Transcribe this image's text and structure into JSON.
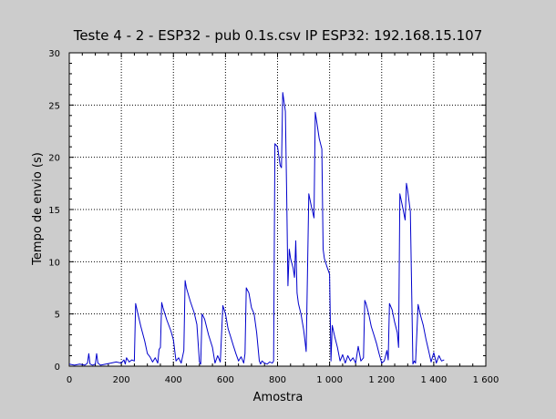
{
  "chart_data": {
    "type": "line",
    "title": "Teste 4 - 2 - ESP32 - pub 0.1s.csv IP ESP32: 192.168.15.107",
    "xlabel": "Amostra",
    "ylabel": "Tempo de envio (s)",
    "xlim": [
      0,
      1600
    ],
    "ylim": [
      0,
      30
    ],
    "x_ticks": [
      0,
      200,
      400,
      600,
      800,
      1000,
      1200,
      1400,
      1600
    ],
    "x_tick_labels": [
      "0",
      "200",
      "400",
      "600",
      "800",
      "1 000",
      "1 200",
      "1 400",
      "1 600"
    ],
    "y_ticks": [
      0,
      5,
      10,
      15,
      20,
      25,
      30
    ],
    "y_tick_labels": [
      "0",
      "5",
      "10",
      "15",
      "20",
      "25",
      "30"
    ],
    "grid": true,
    "line_color": "#0000cc",
    "series": [
      {
        "x": [
          0,
          20,
          40,
          60,
          70,
          75,
          80,
          90,
          100,
          105,
          110,
          120,
          140,
          160,
          180,
          200,
          210,
          215,
          220,
          230,
          240,
          250,
          255,
          260,
          275,
          290,
          300,
          310,
          320,
          330,
          340,
          345,
          350,
          355,
          360,
          375,
          390,
          400,
          410,
          420,
          430,
          440,
          445,
          450,
          465,
          480,
          490,
          500,
          505,
          510,
          520,
          535,
          550,
          560,
          570,
          580,
          590,
          600,
          610,
          620,
          630,
          640,
          650,
          660,
          670,
          675,
          680,
          690,
          700,
          710,
          720,
          730,
          735,
          740,
          750,
          760,
          770,
          780,
          785,
          790,
          800,
          810,
          815,
          820,
          830,
          835,
          840,
          845,
          850,
          860,
          865,
          870,
          875,
          880,
          890,
          900,
          905,
          910,
          920,
          930,
          940,
          945,
          950,
          960,
          970,
          975,
          980,
          990,
          1000,
          1005,
          1010,
          1020,
          1030,
          1040,
          1050,
          1060,
          1070,
          1080,
          1090,
          1100,
          1110,
          1120,
          1130,
          1135,
          1140,
          1150,
          1160,
          1170,
          1180,
          1190,
          1200,
          1210,
          1220,
          1225,
          1230,
          1240,
          1250,
          1260,
          1265,
          1270,
          1280,
          1290,
          1295,
          1300,
          1310,
          1320,
          1325,
          1330,
          1340,
          1350,
          1360,
          1370,
          1380,
          1390,
          1400,
          1410,
          1420,
          1430,
          1440
        ],
        "y": [
          0.2,
          0.1,
          0.2,
          0.1,
          0.3,
          1.2,
          0.2,
          0.1,
          0.2,
          1.2,
          0.3,
          0.1,
          0.2,
          0.3,
          0.4,
          0.3,
          0.6,
          0.2,
          0.8,
          0.4,
          0.6,
          0.5,
          6.0,
          5.4,
          3.8,
          2.4,
          1.2,
          0.9,
          0.4,
          0.8,
          0.3,
          1.6,
          1.8,
          6.1,
          5.6,
          4.4,
          3.4,
          2.5,
          0.5,
          0.8,
          0.3,
          1.5,
          8.2,
          7.5,
          6.2,
          5.1,
          4.0,
          0.4,
          0.2,
          5.0,
          4.5,
          3.0,
          1.8,
          0.3,
          1.0,
          0.4,
          5.8,
          5.0,
          3.6,
          2.8,
          2.0,
          1.2,
          0.5,
          0.9,
          0.3,
          1.2,
          7.5,
          7.0,
          5.6,
          5.0,
          3.2,
          0.5,
          0.2,
          0.5,
          0.3,
          0.2,
          0.4,
          0.3,
          0.5,
          21.3,
          21.0,
          19.2,
          19.0,
          26.2,
          24.4,
          16.6,
          7.7,
          11.2,
          10.3,
          9.4,
          8.5,
          12.0,
          7.0,
          6.0,
          5.0,
          3.5,
          2.5,
          1.4,
          16.5,
          15.3,
          14.2,
          24.3,
          23.5,
          21.8,
          20.8,
          11.2,
          10.3,
          9.5,
          8.8,
          0.5,
          3.9,
          2.8,
          1.8,
          0.5,
          1.1,
          0.3,
          1.0,
          0.5,
          0.8,
          0.3,
          1.9,
          0.5,
          0.8,
          6.3,
          6.0,
          5.0,
          3.8,
          3.0,
          2.2,
          1.2,
          0.3,
          0.5,
          1.5,
          0.6,
          6.0,
          5.4,
          4.2,
          3.2,
          1.8,
          16.5,
          15.3,
          14.0,
          17.5,
          16.8,
          14.8,
          0.2,
          0.5,
          0.3,
          5.9,
          4.8,
          3.9,
          2.6,
          1.5,
          0.4,
          1.3,
          0.3,
          1.0,
          0.5,
          0.6
        ]
      }
    ]
  }
}
